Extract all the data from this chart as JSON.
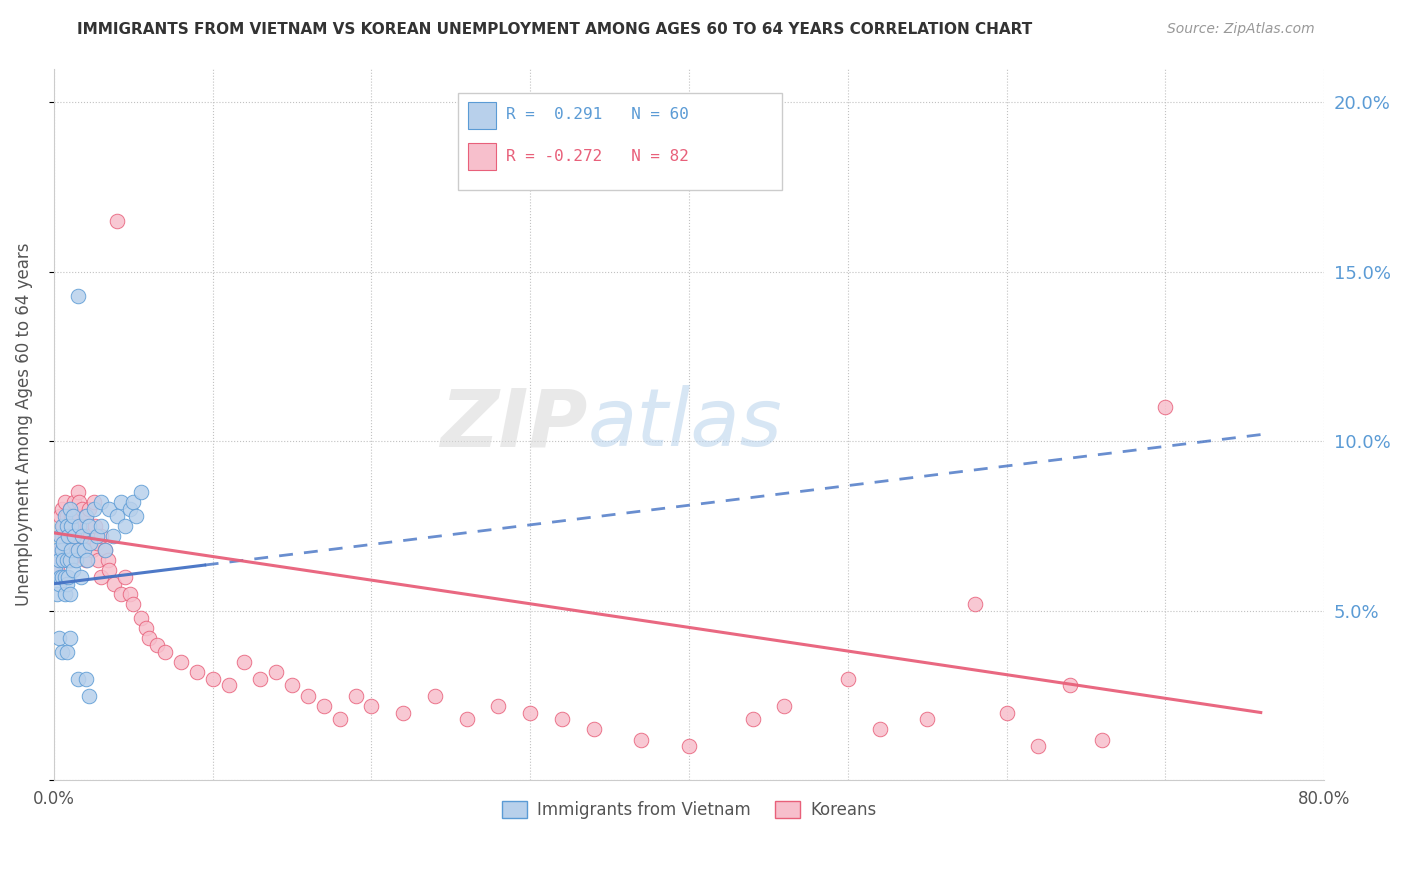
{
  "title": "IMMIGRANTS FROM VIETNAM VS KOREAN UNEMPLOYMENT AMONG AGES 60 TO 64 YEARS CORRELATION CHART",
  "source": "Source: ZipAtlas.com",
  "ylabel": "Unemployment Among Ages 60 to 64 years",
  "xlim": [
    0.0,
    0.8
  ],
  "ylim": [
    0.0,
    0.21
  ],
  "watermark_zip": "ZIP",
  "watermark_atlas": "atlas",
  "blue_color": "#b8d0eb",
  "pink_color": "#f7bfcc",
  "blue_edge_color": "#5b9bd5",
  "pink_edge_color": "#e8607a",
  "blue_line_color": "#4472c4",
  "pink_line_color": "#e8607a",
  "blue_scatter": [
    [
      0.001,
      0.062
    ],
    [
      0.002,
      0.055
    ],
    [
      0.002,
      0.068
    ],
    [
      0.003,
      0.058
    ],
    [
      0.003,
      0.065
    ],
    [
      0.004,
      0.072
    ],
    [
      0.004,
      0.06
    ],
    [
      0.005,
      0.075
    ],
    [
      0.005,
      0.06
    ],
    [
      0.005,
      0.068
    ],
    [
      0.006,
      0.065
    ],
    [
      0.006,
      0.07
    ],
    [
      0.007,
      0.078
    ],
    [
      0.007,
      0.06
    ],
    [
      0.007,
      0.055
    ],
    [
      0.008,
      0.075
    ],
    [
      0.008,
      0.065
    ],
    [
      0.008,
      0.058
    ],
    [
      0.009,
      0.072
    ],
    [
      0.009,
      0.06
    ],
    [
      0.01,
      0.08
    ],
    [
      0.01,
      0.065
    ],
    [
      0.01,
      0.055
    ],
    [
      0.011,
      0.075
    ],
    [
      0.011,
      0.068
    ],
    [
      0.012,
      0.078
    ],
    [
      0.012,
      0.062
    ],
    [
      0.013,
      0.072
    ],
    [
      0.014,
      0.065
    ],
    [
      0.015,
      0.143
    ],
    [
      0.015,
      0.068
    ],
    [
      0.016,
      0.075
    ],
    [
      0.017,
      0.06
    ],
    [
      0.018,
      0.072
    ],
    [
      0.019,
      0.068
    ],
    [
      0.02,
      0.078
    ],
    [
      0.021,
      0.065
    ],
    [
      0.022,
      0.075
    ],
    [
      0.023,
      0.07
    ],
    [
      0.025,
      0.08
    ],
    [
      0.027,
      0.072
    ],
    [
      0.03,
      0.075
    ],
    [
      0.03,
      0.082
    ],
    [
      0.032,
      0.068
    ],
    [
      0.035,
      0.08
    ],
    [
      0.037,
      0.072
    ],
    [
      0.04,
      0.078
    ],
    [
      0.042,
      0.082
    ],
    [
      0.045,
      0.075
    ],
    [
      0.048,
      0.08
    ],
    [
      0.05,
      0.082
    ],
    [
      0.052,
      0.078
    ],
    [
      0.055,
      0.085
    ],
    [
      0.003,
      0.042
    ],
    [
      0.005,
      0.038
    ],
    [
      0.008,
      0.038
    ],
    [
      0.01,
      0.042
    ],
    [
      0.015,
      0.03
    ],
    [
      0.02,
      0.03
    ],
    [
      0.022,
      0.025
    ]
  ],
  "pink_scatter": [
    [
      0.002,
      0.062
    ],
    [
      0.003,
      0.065
    ],
    [
      0.004,
      0.078
    ],
    [
      0.004,
      0.068
    ],
    [
      0.005,
      0.08
    ],
    [
      0.005,
      0.072
    ],
    [
      0.006,
      0.075
    ],
    [
      0.006,
      0.068
    ],
    [
      0.007,
      0.082
    ],
    [
      0.007,
      0.072
    ],
    [
      0.008,
      0.078
    ],
    [
      0.008,
      0.065
    ],
    [
      0.009,
      0.075
    ],
    [
      0.009,
      0.068
    ],
    [
      0.01,
      0.08
    ],
    [
      0.01,
      0.072
    ],
    [
      0.011,
      0.078
    ],
    [
      0.011,
      0.065
    ],
    [
      0.012,
      0.075
    ],
    [
      0.012,
      0.068
    ],
    [
      0.013,
      0.082
    ],
    [
      0.013,
      0.072
    ],
    [
      0.014,
      0.078
    ],
    [
      0.015,
      0.085
    ],
    [
      0.015,
      0.068
    ],
    [
      0.016,
      0.082
    ],
    [
      0.017,
      0.075
    ],
    [
      0.018,
      0.08
    ],
    [
      0.019,
      0.072
    ],
    [
      0.02,
      0.078
    ],
    [
      0.02,
      0.065
    ],
    [
      0.021,
      0.075
    ],
    [
      0.022,
      0.08
    ],
    [
      0.023,
      0.072
    ],
    [
      0.024,
      0.068
    ],
    [
      0.025,
      0.082
    ],
    [
      0.026,
      0.075
    ],
    [
      0.027,
      0.07
    ],
    [
      0.028,
      0.065
    ],
    [
      0.03,
      0.072
    ],
    [
      0.03,
      0.06
    ],
    [
      0.032,
      0.068
    ],
    [
      0.034,
      0.065
    ],
    [
      0.035,
      0.062
    ],
    [
      0.038,
      0.058
    ],
    [
      0.04,
      0.165
    ],
    [
      0.042,
      0.055
    ],
    [
      0.045,
      0.06
    ],
    [
      0.048,
      0.055
    ],
    [
      0.05,
      0.052
    ],
    [
      0.055,
      0.048
    ],
    [
      0.058,
      0.045
    ],
    [
      0.06,
      0.042
    ],
    [
      0.065,
      0.04
    ],
    [
      0.07,
      0.038
    ],
    [
      0.08,
      0.035
    ],
    [
      0.09,
      0.032
    ],
    [
      0.1,
      0.03
    ],
    [
      0.11,
      0.028
    ],
    [
      0.12,
      0.035
    ],
    [
      0.13,
      0.03
    ],
    [
      0.14,
      0.032
    ],
    [
      0.15,
      0.028
    ],
    [
      0.16,
      0.025
    ],
    [
      0.17,
      0.022
    ],
    [
      0.18,
      0.018
    ],
    [
      0.19,
      0.025
    ],
    [
      0.2,
      0.022
    ],
    [
      0.22,
      0.02
    ],
    [
      0.24,
      0.025
    ],
    [
      0.26,
      0.018
    ],
    [
      0.28,
      0.022
    ],
    [
      0.3,
      0.02
    ],
    [
      0.32,
      0.018
    ],
    [
      0.34,
      0.015
    ],
    [
      0.37,
      0.012
    ],
    [
      0.4,
      0.01
    ],
    [
      0.44,
      0.018
    ],
    [
      0.46,
      0.022
    ],
    [
      0.5,
      0.03
    ],
    [
      0.52,
      0.015
    ],
    [
      0.55,
      0.018
    ],
    [
      0.58,
      0.052
    ],
    [
      0.6,
      0.02
    ],
    [
      0.62,
      0.01
    ],
    [
      0.64,
      0.028
    ],
    [
      0.66,
      0.012
    ],
    [
      0.7,
      0.11
    ]
  ],
  "blue_line_x0": 0.0,
  "blue_line_y0": 0.058,
  "blue_line_x1": 0.76,
  "blue_line_y1": 0.102,
  "pink_line_x0": 0.0,
  "pink_line_y0": 0.073,
  "pink_line_x1": 0.76,
  "pink_line_y1": 0.02
}
